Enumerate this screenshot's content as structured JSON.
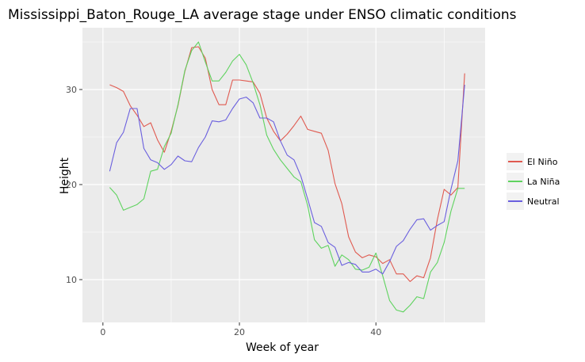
{
  "chart_data": {
    "type": "line",
    "title": "Mississippi_Baton_Rouge_LA average stage under ENSO climatic conditions",
    "xlabel": "Week of year",
    "ylabel": "Height",
    "xlim": [
      -3,
      56
    ],
    "ylim": [
      5.5,
      36.5
    ],
    "xticks": [
      0,
      20,
      40
    ],
    "yticks": [
      10,
      20,
      30
    ],
    "grid": true,
    "legend_position": "right",
    "x": [
      1,
      2,
      3,
      4,
      5,
      6,
      7,
      8,
      9,
      10,
      11,
      12,
      13,
      14,
      15,
      16,
      17,
      18,
      19,
      20,
      21,
      22,
      23,
      24,
      25,
      26,
      27,
      28,
      29,
      30,
      31,
      32,
      33,
      34,
      35,
      36,
      37,
      38,
      39,
      40,
      41,
      42,
      43,
      44,
      45,
      46,
      47,
      48,
      49,
      50,
      51,
      52,
      53
    ],
    "series": [
      {
        "name": "El Niño",
        "color": "#e05a50",
        "values": [
          30.5,
          30.2,
          29.8,
          28.3,
          27.3,
          26.1,
          26.5,
          24.7,
          23.4,
          25.6,
          28.3,
          31.9,
          34.4,
          34.5,
          33.3,
          30.0,
          28.4,
          28.4,
          31.0,
          31.0,
          30.9,
          30.8,
          29.6,
          27.0,
          25.6,
          24.6,
          25.3,
          26.2,
          27.2,
          25.8,
          25.6,
          25.4,
          23.6,
          20.1,
          18.0,
          14.5,
          12.9,
          12.3,
          12.6,
          12.4,
          11.7,
          12.1,
          10.6,
          10.6,
          9.8,
          10.4,
          10.2,
          12.3,
          16.3,
          19.5,
          18.9,
          19.7,
          31.7
        ]
      },
      {
        "name": "La Niña",
        "color": "#5fd35f",
        "values": [
          19.7,
          18.9,
          17.3,
          17.6,
          17.9,
          18.5,
          21.4,
          21.6,
          24.0,
          25.4,
          28.4,
          32.0,
          34.1,
          35.0,
          32.9,
          30.9,
          30.9,
          31.8,
          33.0,
          33.7,
          32.6,
          30.7,
          28.4,
          25.2,
          23.7,
          22.6,
          21.7,
          20.8,
          20.3,
          17.8,
          14.2,
          13.3,
          13.6,
          11.4,
          12.6,
          12.1,
          11.1,
          11.0,
          11.3,
          12.8,
          10.4,
          7.8,
          6.8,
          6.6,
          7.3,
          8.2,
          8.0,
          10.8,
          11.8,
          13.9,
          17.2,
          19.6,
          19.6
        ]
      },
      {
        "name": "Neutral",
        "color": "#6a5fde",
        "values": [
          21.4,
          24.4,
          25.5,
          28.0,
          28.0,
          23.8,
          22.6,
          22.3,
          21.6,
          22.1,
          23.0,
          22.5,
          22.4,
          23.9,
          25.0,
          26.7,
          26.6,
          26.8,
          28.0,
          29.0,
          29.2,
          28.6,
          27.0,
          27.0,
          26.6,
          24.6,
          23.1,
          22.6,
          20.9,
          18.5,
          16.0,
          15.6,
          13.9,
          13.4,
          11.5,
          11.8,
          11.6,
          10.8,
          10.8,
          11.1,
          10.6,
          11.9,
          13.5,
          14.1,
          15.3,
          16.3,
          16.4,
          15.2,
          15.7,
          16.1,
          19.5,
          22.5,
          30.5
        ]
      }
    ]
  }
}
